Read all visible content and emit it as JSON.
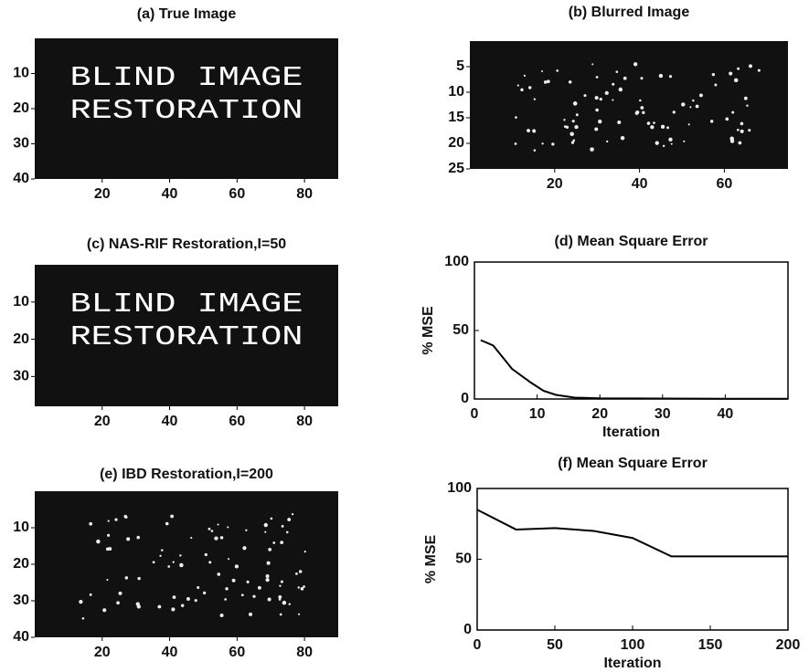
{
  "chart_data": [
    {
      "type": "image",
      "title": "(a) True Image",
      "overlay": [
        "BLIND IMAGE",
        "RESTORATION"
      ],
      "xlim": [
        0,
        90
      ],
      "ylim": [
        0,
        40
      ],
      "xticks": [
        20,
        40,
        60,
        80
      ],
      "yticks": [
        10,
        20,
        30,
        40
      ],
      "specks": false
    },
    {
      "type": "image",
      "title": "(b) Blurred Image",
      "xlim": [
        0,
        75
      ],
      "ylim": [
        0,
        25
      ],
      "xticks": [
        20,
        40,
        60
      ],
      "yticks": [
        5,
        10,
        15,
        20,
        25
      ],
      "specks": true
    },
    {
      "type": "image",
      "title": "(c) NAS-RIF Restoration,I=50",
      "overlay": [
        "BLIND IMAGE",
        "RESTORATION"
      ],
      "xlim": [
        0,
        90
      ],
      "ylim": [
        0,
        38
      ],
      "xticks": [
        20,
        40,
        60,
        80
      ],
      "yticks": [
        10,
        20,
        30
      ],
      "specks": false
    },
    {
      "type": "line",
      "title": "(d) Mean Square Error",
      "x_label": "Iteration",
      "y_label": "% MSE",
      "x": [
        1,
        3,
        6,
        9,
        11,
        13,
        16,
        20,
        30,
        40,
        50
      ],
      "values": [
        43,
        39,
        22,
        12,
        6,
        3,
        1,
        0.5,
        0.3,
        0.2,
        0.2
      ],
      "color": "#000000",
      "xlim": [
        0,
        50
      ],
      "ylim": [
        0,
        100
      ],
      "xticks": [
        0,
        10,
        20,
        30,
        40
      ],
      "yticks": [
        0,
        50,
        100
      ]
    },
    {
      "type": "image",
      "title": "(e) IBD Restoration,I=200",
      "xlim": [
        0,
        90
      ],
      "ylim": [
        0,
        40
      ],
      "xticks": [
        20,
        40,
        60,
        80
      ],
      "yticks": [
        10,
        20,
        30,
        40
      ],
      "specks": true
    },
    {
      "type": "line",
      "title": "(f) Mean Square Error",
      "x_label": "Iteration",
      "y_label": "% MSE",
      "x": [
        0,
        25,
        50,
        75,
        100,
        125,
        150,
        200
      ],
      "values": [
        85,
        71,
        72,
        70,
        65,
        52,
        52,
        52
      ],
      "color": "#000000",
      "xlim": [
        0,
        200
      ],
      "ylim": [
        0,
        100
      ],
      "xticks": [
        0,
        50,
        100,
        150,
        200
      ],
      "yticks": [
        0,
        50,
        100
      ]
    }
  ]
}
